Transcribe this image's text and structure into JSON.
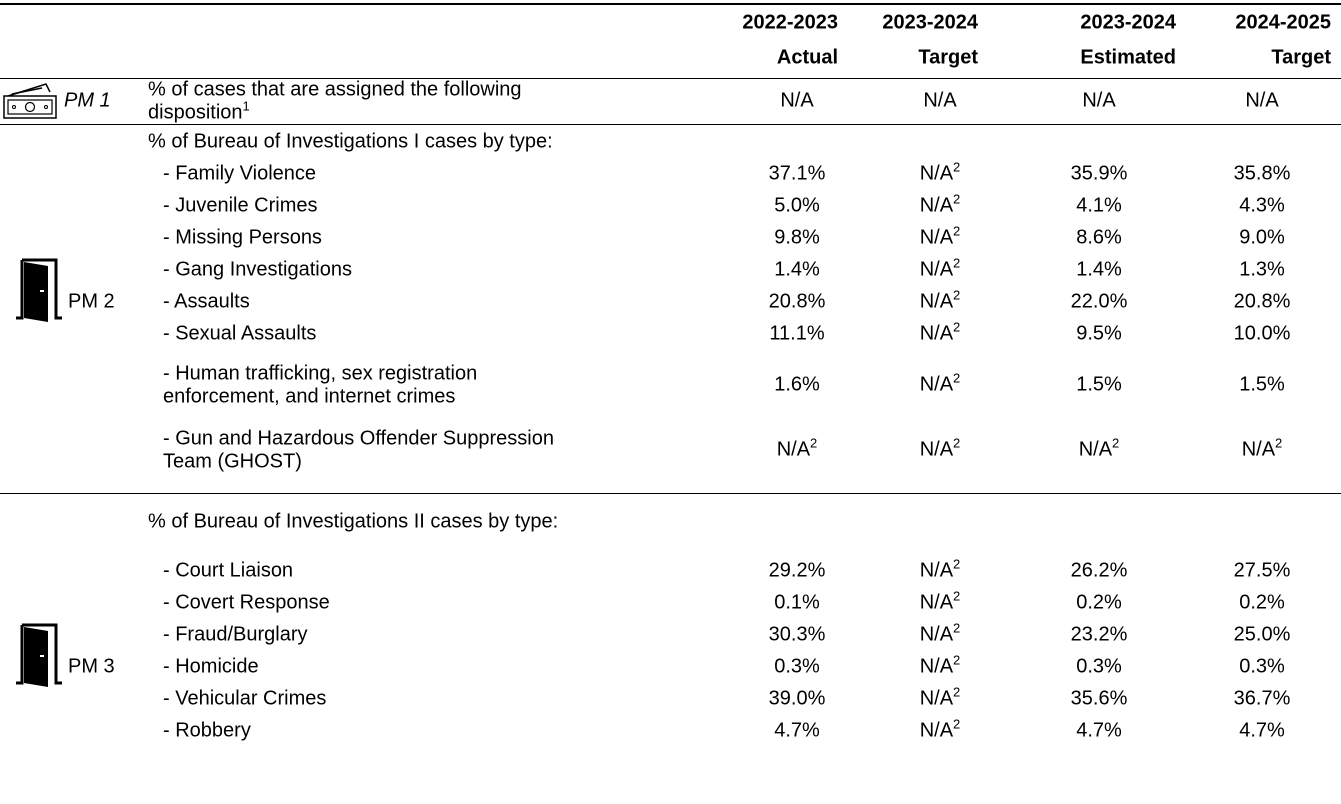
{
  "header": {
    "columns": [
      [
        "2022-2023",
        "Actual"
      ],
      [
        "2023-2024",
        "Target"
      ],
      [
        "2023-2024",
        "Estimated"
      ],
      [
        "2024-2025",
        "Target"
      ]
    ]
  },
  "sections": [
    {
      "pm": "PM 1",
      "rows": [
        {
          "label": [
            "% of cases that are assigned the following",
            "disposition"
          ],
          "label_sup": "1",
          "values": [
            "N/A",
            "N/A",
            "N/A",
            "N/A"
          ]
        }
      ]
    },
    {
      "pm": "PM 2",
      "heading": "% of Bureau of Investigations I cases by type:",
      "rows": [
        {
          "label": [
            "- Family Violence"
          ],
          "values": [
            "37.1%",
            {
              "text": "N/A",
              "sup": "2"
            },
            "35.9%",
            "35.8%"
          ]
        },
        {
          "label": [
            "- Juvenile Crimes"
          ],
          "values": [
            "5.0%",
            {
              "text": "N/A",
              "sup": "2"
            },
            "4.1%",
            "4.3%"
          ]
        },
        {
          "label": [
            "- Missing Persons"
          ],
          "values": [
            "9.8%",
            {
              "text": "N/A",
              "sup": "2"
            },
            "8.6%",
            "9.0%"
          ]
        },
        {
          "label": [
            "- Gang Investigations"
          ],
          "values": [
            "1.4%",
            {
              "text": "N/A",
              "sup": "2"
            },
            "1.4%",
            "1.3%"
          ]
        },
        {
          "label": [
            "- Assaults"
          ],
          "values": [
            "20.8%",
            {
              "text": "N/A",
              "sup": "2"
            },
            "22.0%",
            "20.8%"
          ]
        },
        {
          "label": [
            "- Sexual Assaults"
          ],
          "values": [
            "11.1%",
            {
              "text": "N/A",
              "sup": "2"
            },
            "9.5%",
            "10.0%"
          ]
        },
        {
          "label": [
            "- Human trafficking, sex registration",
            "enforcement, and internet crimes"
          ],
          "values": [
            "1.6%",
            {
              "text": "N/A",
              "sup": "2"
            },
            "1.5%",
            "1.5%"
          ]
        },
        {
          "label": [
            "- Gun and Hazardous Offender Suppression",
            "Team (GHOST)"
          ],
          "values": [
            {
              "text": "N/A",
              "sup": "2"
            },
            {
              "text": "N/A",
              "sup": "2"
            },
            {
              "text": "N/A",
              "sup": "2"
            },
            {
              "text": "N/A",
              "sup": "2"
            }
          ]
        }
      ]
    },
    {
      "pm": "PM 3",
      "heading": "% of Bureau of Investigations II cases by type:",
      "rows": [
        {
          "label": [
            "- Court Liaison"
          ],
          "values": [
            "29.2%",
            {
              "text": "N/A",
              "sup": "2"
            },
            "26.2%",
            "27.5%"
          ]
        },
        {
          "label": [
            "- Covert Response"
          ],
          "values": [
            "0.1%",
            {
              "text": "N/A",
              "sup": "2"
            },
            "0.2%",
            "0.2%"
          ]
        },
        {
          "label": [
            "- Fraud/Burglary"
          ],
          "values": [
            "30.3%",
            {
              "text": "N/A",
              "sup": "2"
            },
            "23.2%",
            "25.0%"
          ]
        },
        {
          "label": [
            "- Homicide"
          ],
          "values": [
            "0.3%",
            {
              "text": "N/A",
              "sup": "2"
            },
            "0.3%",
            "0.3%"
          ]
        },
        {
          "label": [
            "- Vehicular Crimes"
          ],
          "values": [
            "39.0%",
            {
              "text": "N/A",
              "sup": "2"
            },
            "35.6%",
            "36.7%"
          ]
        },
        {
          "label": [
            "- Robbery"
          ],
          "values": [
            "4.7%",
            {
              "text": "N/A",
              "sup": "2"
            },
            "4.7%",
            "4.7%"
          ]
        }
      ]
    }
  ]
}
